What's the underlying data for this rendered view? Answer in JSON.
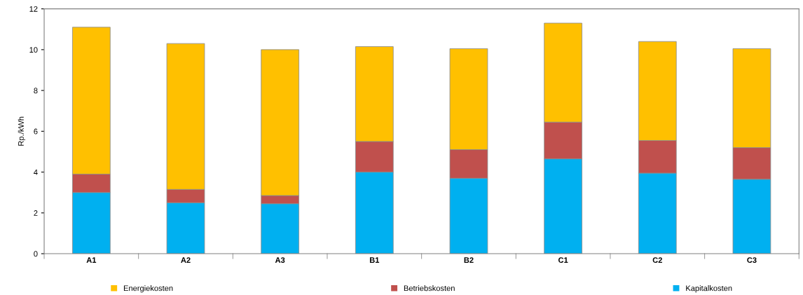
{
  "chart_data": {
    "type": "bar",
    "stacked": true,
    "ylabel": "Rp./kWh",
    "categories": [
      "A1",
      "A2",
      "A3",
      "B1",
      "B2",
      "C1",
      "C2",
      "C3"
    ],
    "series": [
      {
        "name": "Kapitalkosten",
        "color": "#00b0f0",
        "values": [
          3.0,
          2.5,
          2.45,
          4.0,
          3.7,
          4.65,
          3.95,
          3.65
        ]
      },
      {
        "name": "Betriebskosten",
        "color": "#c0504d",
        "values": [
          0.9,
          0.65,
          0.4,
          1.5,
          1.4,
          1.8,
          1.6,
          1.55
        ]
      },
      {
        "name": "Energiekosten",
        "color": "#ffc000",
        "values": [
          7.2,
          7.15,
          7.15,
          4.65,
          4.95,
          4.85,
          4.85,
          4.85
        ]
      }
    ],
    "ylim": [
      0,
      12
    ],
    "yticks": [
      0,
      2,
      4,
      6,
      8,
      10,
      12
    ],
    "grid": false,
    "legend": "bottom"
  }
}
